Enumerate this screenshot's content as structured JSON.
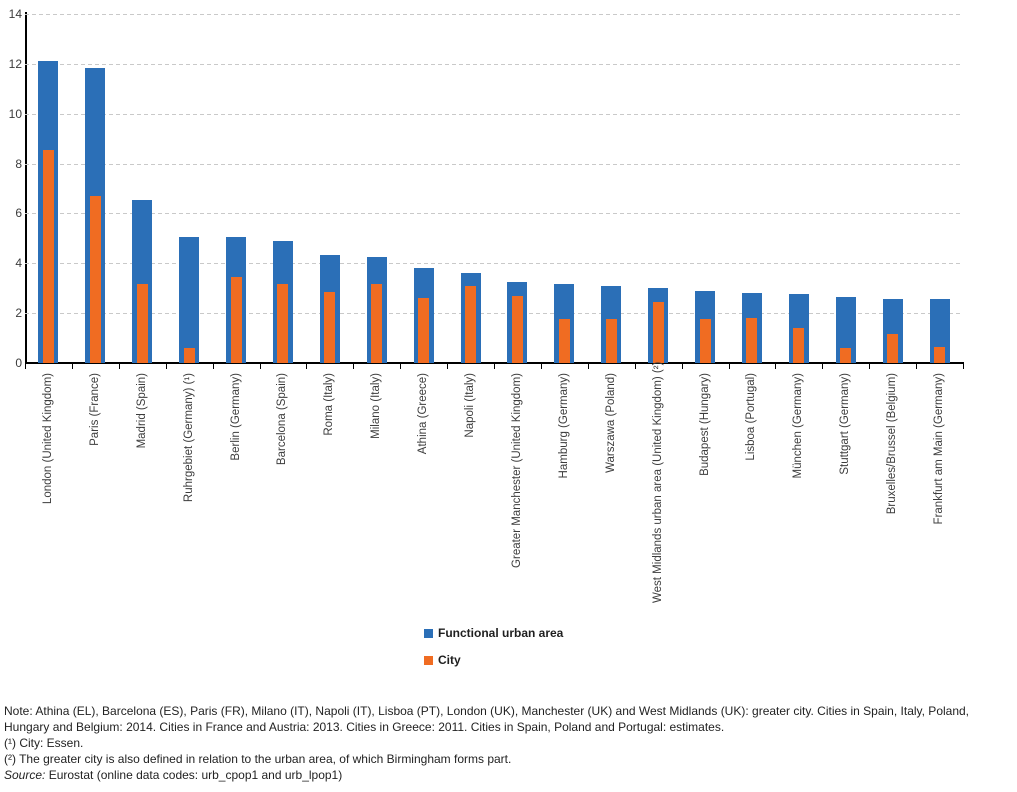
{
  "chart_data": {
    "type": "bar",
    "title": "",
    "categories": [
      "London (United Kingdom)",
      "Paris (France)",
      "Madrid (Spain)",
      "Ruhrgebiet (Germany) (¹)",
      "Berlin (Germany)",
      "Barcelona (Spain)",
      "Roma (Italy)",
      "Milano (Italy)",
      "Athina (Greece)",
      "Napoli (Italy)",
      "Greater Manchester (United Kingdom)",
      "Hamburg (Germany)",
      "Warszawa (Poland)",
      "West Midlands urban area (United Kingdom) (²)",
      "Budapest (Hungary)",
      "Lisboa (Portugal)",
      "München (Germany)",
      "Stuttgart (Germany)",
      "Bruxelles/Brussel (Belgium)",
      "Frankfurt am Main (Germany)"
    ],
    "series": [
      {
        "name": "Functional urban area",
        "color": "#2B6FB7",
        "values": [
          12.1,
          11.85,
          6.55,
          5.05,
          5.05,
          4.9,
          4.35,
          4.25,
          3.8,
          3.6,
          3.25,
          3.15,
          3.1,
          3.0,
          2.9,
          2.8,
          2.75,
          2.65,
          2.55,
          2.55
        ]
      },
      {
        "name": "City",
        "color": "#F06C22",
        "values": [
          8.55,
          6.7,
          3.15,
          0.6,
          3.45,
          3.15,
          2.85,
          3.15,
          2.6,
          3.1,
          2.7,
          1.75,
          1.75,
          2.45,
          1.75,
          1.8,
          1.4,
          0.6,
          1.15,
          0.65
        ]
      }
    ],
    "overlay": true,
    "xlabel": "",
    "ylabel": "",
    "ylim": [
      0,
      14
    ],
    "yticks": [
      0,
      2,
      4,
      6,
      8,
      10,
      12,
      14
    ],
    "grid": "horizontal-dashed",
    "legend_position": "bottom-center"
  },
  "legend": {
    "items": [
      {
        "label": "Functional urban area",
        "color": "#2B6FB7"
      },
      {
        "label": "City",
        "color": "#F06C22"
      }
    ]
  },
  "notes": {
    "note": "Note: Athina (EL), Barcelona (ES), Paris (FR), Milano (IT), Napoli (IT), Lisboa (PT), London (UK), Manchester (UK) and West Midlands (UK): greater city. Cities in Spain, Italy, Poland, Hungary and Belgium: 2014. Cities in France and Austria: 2013. Cities in Greece: 2011. Cities in Spain, Poland and Portugal: estimates.",
    "footnote1": "(¹) City: Essen.",
    "footnote2": "(²) The greater city is also defined in relation to the urban area, of which Birmingham forms part.",
    "source_label": "Source:",
    "source_text": " Eurostat (online data codes: urb_cpop1 and urb_lpop1)"
  }
}
